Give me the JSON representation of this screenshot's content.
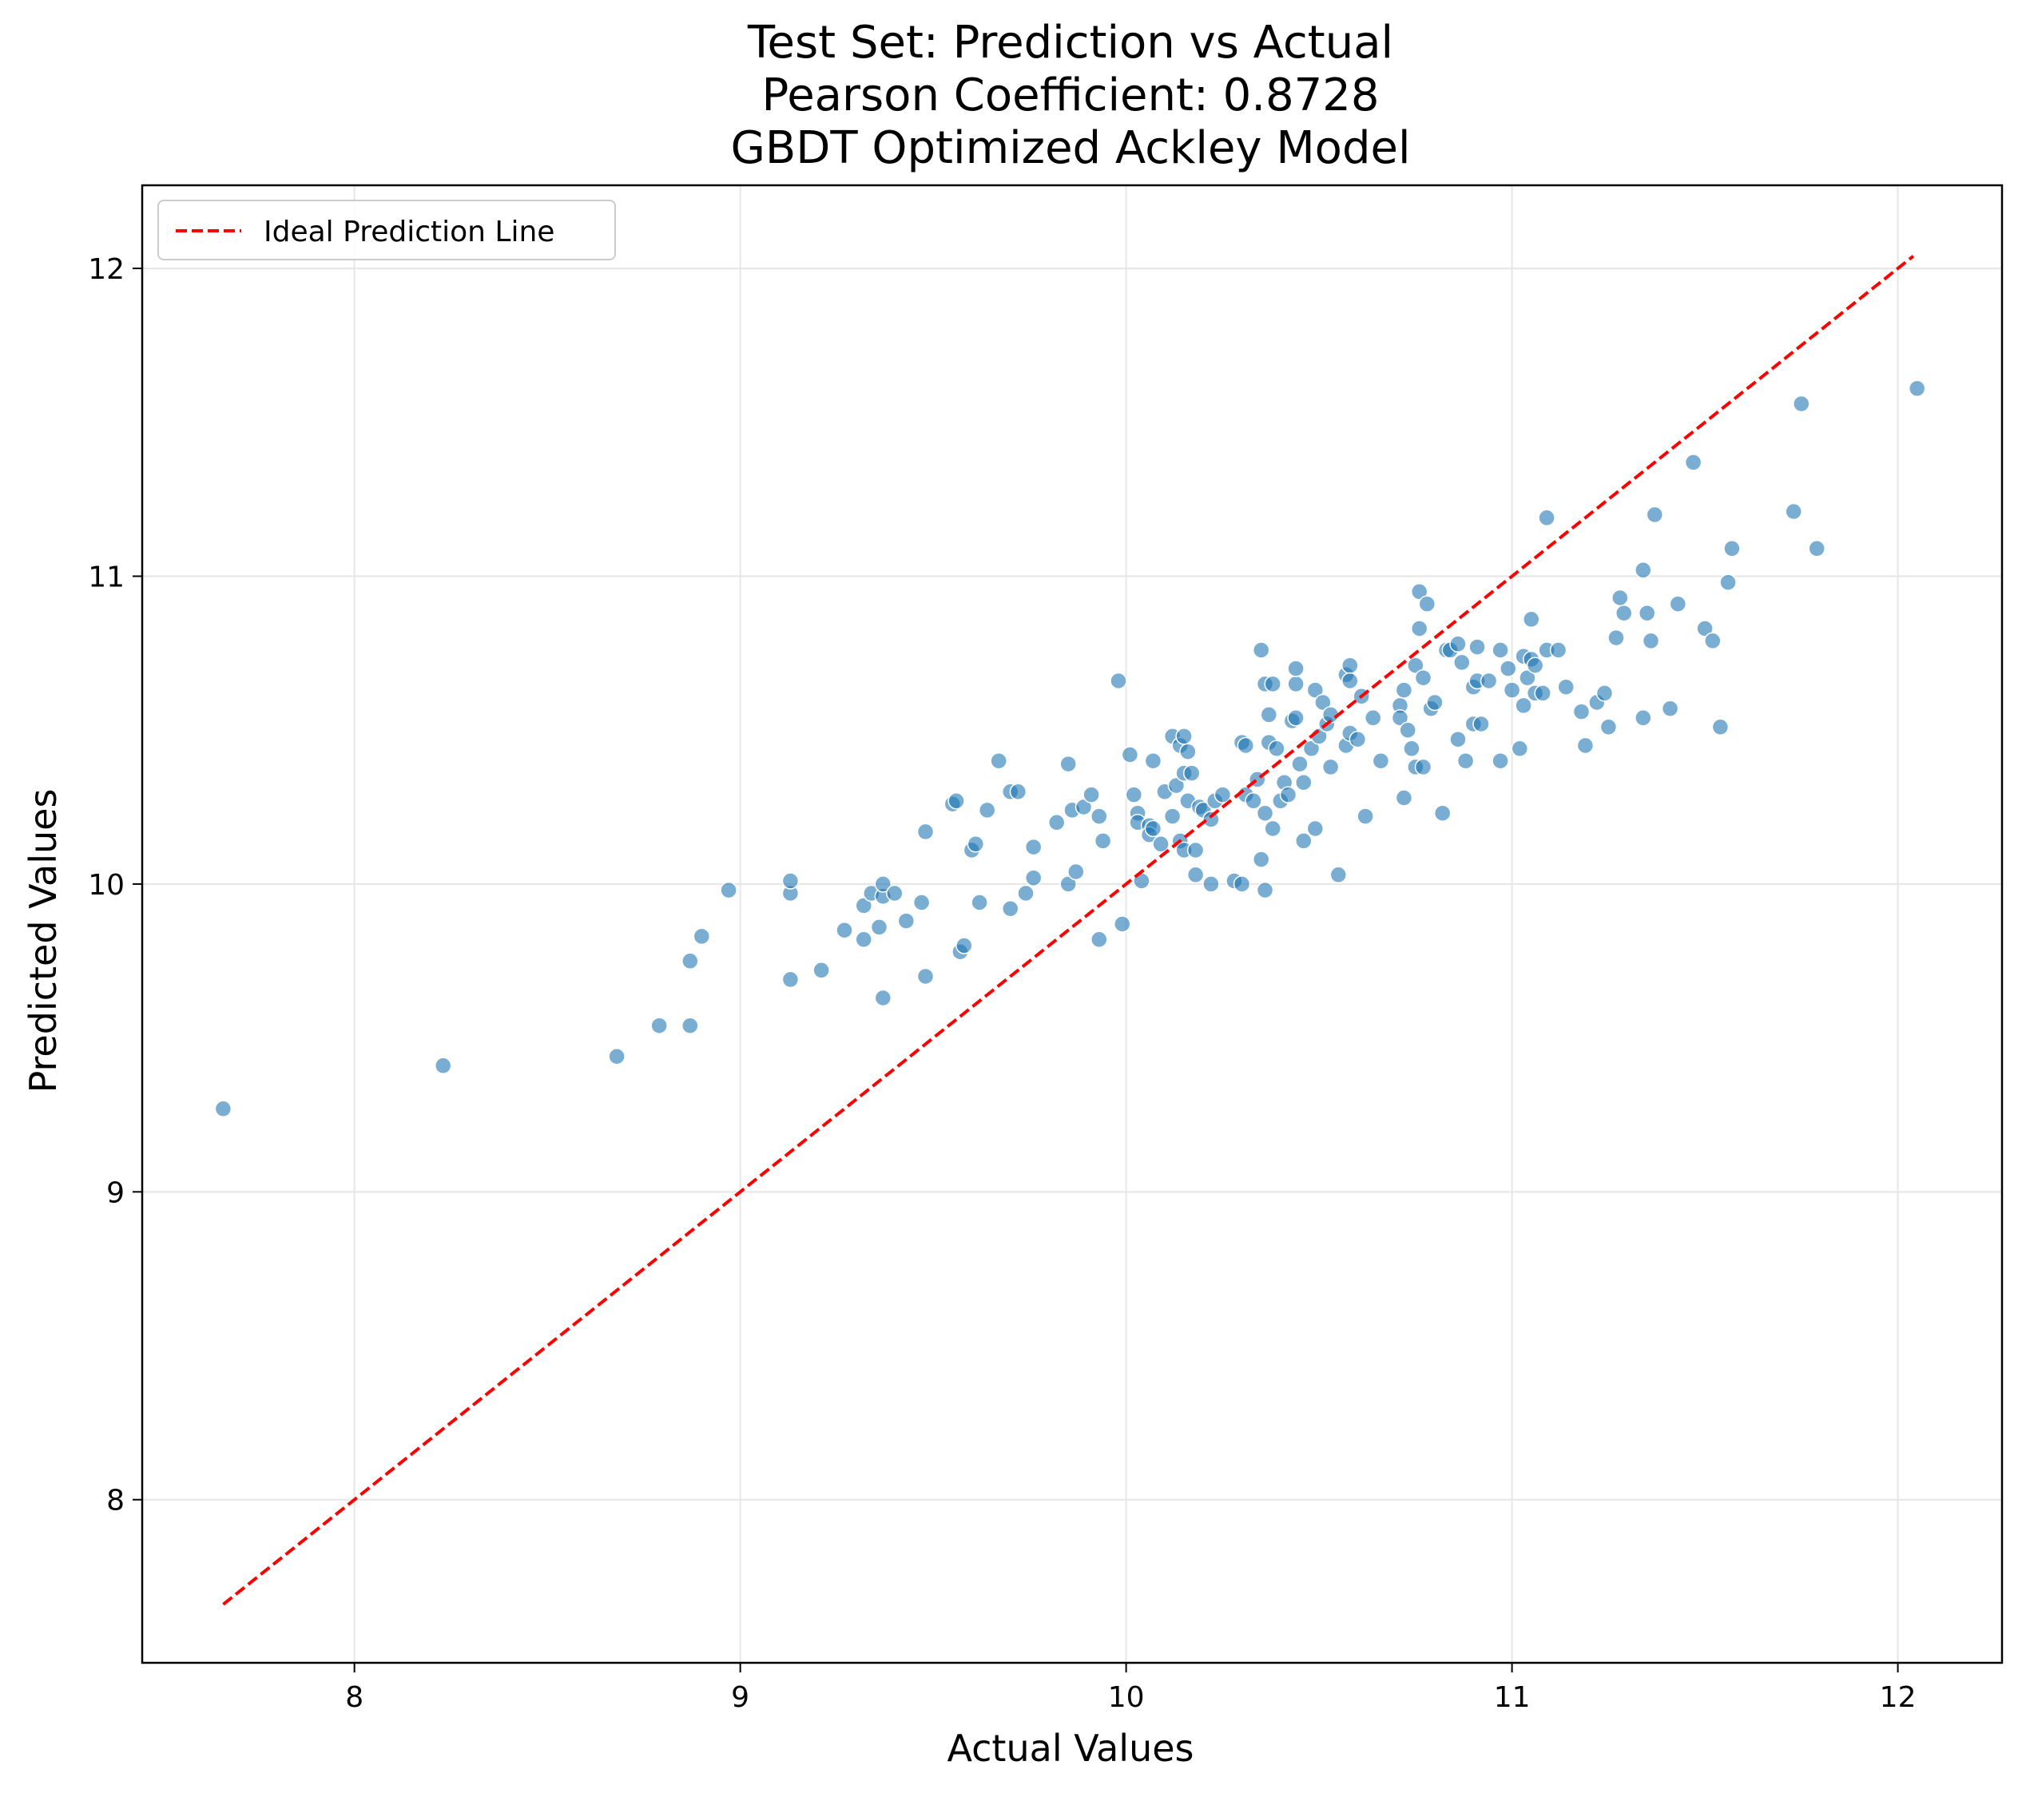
{
  "colors": {
    "point_fill": "#1f77b4",
    "point_edge": "#ffffff",
    "ideal_line": "#ff0000",
    "grid": "#e6e6e6",
    "axes": "#000000"
  },
  "chart_data": {
    "type": "scatter",
    "title_lines": [
      "Test Set: Prediction vs Actual",
      "Pearson Coefficient: 0.8728",
      "GBDT Optimized Ackley Model"
    ],
    "xlabel": "Actual Values",
    "ylabel": "Predicted Values",
    "xlim": [
      7.45,
      12.27
    ],
    "ylim": [
      7.47,
      12.27
    ],
    "xticks": [
      8,
      9,
      10,
      11,
      12
    ],
    "yticks": [
      8,
      9,
      10,
      11,
      12
    ],
    "grid": true,
    "legend": {
      "position": "top-left",
      "entries": [
        "Ideal Prediction Line"
      ]
    },
    "ideal_line": {
      "from": [
        7.66,
        7.66
      ],
      "to": [
        12.04,
        12.04
      ],
      "style": "dashed"
    },
    "series": [
      {
        "marker": "circle",
        "alpha": 0.6,
        "points": [
          [
            7.66,
            9.27
          ],
          [
            8.23,
            9.41
          ],
          [
            8.68,
            9.44
          ],
          [
            8.79,
            9.54
          ],
          [
            8.87,
            9.54
          ],
          [
            8.87,
            9.75
          ],
          [
            8.9,
            9.83
          ],
          [
            8.97,
            9.98
          ],
          [
            9.13,
            9.97
          ],
          [
            9.13,
            10.01
          ],
          [
            9.13,
            9.69
          ],
          [
            9.21,
            9.72
          ],
          [
            9.27,
            9.85
          ],
          [
            9.32,
            9.82
          ],
          [
            9.32,
            9.93
          ],
          [
            9.34,
            9.97
          ],
          [
            9.36,
            9.86
          ],
          [
            9.37,
            9.96
          ],
          [
            9.37,
            10.0
          ],
          [
            9.37,
            9.63
          ],
          [
            9.4,
            9.97
          ],
          [
            9.43,
            9.88
          ],
          [
            9.47,
            9.94
          ],
          [
            9.48,
            9.7
          ],
          [
            9.48,
            10.17
          ],
          [
            9.55,
            10.26
          ],
          [
            9.56,
            10.27
          ],
          [
            9.57,
            9.78
          ],
          [
            9.58,
            9.8
          ],
          [
            9.6,
            10.11
          ],
          [
            9.61,
            10.13
          ],
          [
            9.62,
            9.94
          ],
          [
            9.64,
            10.24
          ],
          [
            9.67,
            10.4
          ],
          [
            9.7,
            9.92
          ],
          [
            9.7,
            10.3
          ],
          [
            9.72,
            10.3
          ],
          [
            9.74,
            9.97
          ],
          [
            9.76,
            10.02
          ],
          [
            9.76,
            10.12
          ],
          [
            9.82,
            10.2
          ],
          [
            9.85,
            10.0
          ],
          [
            9.85,
            10.39
          ],
          [
            9.86,
            10.24
          ],
          [
            9.87,
            10.04
          ],
          [
            9.89,
            10.25
          ],
          [
            9.91,
            10.29
          ],
          [
            9.93,
            10.22
          ],
          [
            9.93,
            9.82
          ],
          [
            9.94,
            10.14
          ],
          [
            9.98,
            10.66
          ],
          [
            9.99,
            9.87
          ],
          [
            10.01,
            10.42
          ],
          [
            10.02,
            10.29
          ],
          [
            10.03,
            10.23
          ],
          [
            10.03,
            10.2
          ],
          [
            10.04,
            10.01
          ],
          [
            10.06,
            10.19
          ],
          [
            10.06,
            10.16
          ],
          [
            10.07,
            10.4
          ],
          [
            10.07,
            10.18
          ],
          [
            10.09,
            10.13
          ],
          [
            10.1,
            10.3
          ],
          [
            10.12,
            10.22
          ],
          [
            10.12,
            10.48
          ],
          [
            10.13,
            10.32
          ],
          [
            10.14,
            10.45
          ],
          [
            10.14,
            10.14
          ],
          [
            10.15,
            10.11
          ],
          [
            10.15,
            10.36
          ],
          [
            10.15,
            10.48
          ],
          [
            10.16,
            10.27
          ],
          [
            10.16,
            10.43
          ],
          [
            10.17,
            10.36
          ],
          [
            10.18,
            10.03
          ],
          [
            10.18,
            10.11
          ],
          [
            10.19,
            10.25
          ],
          [
            10.2,
            10.24
          ],
          [
            10.22,
            10.21
          ],
          [
            10.22,
            10.0
          ],
          [
            10.23,
            10.27
          ],
          [
            10.25,
            10.29
          ],
          [
            10.28,
            10.01
          ],
          [
            10.3,
            10.46
          ],
          [
            10.3,
            10.0
          ],
          [
            10.31,
            10.45
          ],
          [
            10.31,
            10.29
          ],
          [
            10.33,
            10.27
          ],
          [
            10.34,
            10.34
          ],
          [
            10.35,
            10.76
          ],
          [
            10.35,
            10.08
          ],
          [
            10.36,
            10.23
          ],
          [
            10.36,
            10.65
          ],
          [
            10.36,
            9.98
          ],
          [
            10.37,
            10.46
          ],
          [
            10.37,
            10.55
          ],
          [
            10.38,
            10.65
          ],
          [
            10.38,
            10.18
          ],
          [
            10.39,
            10.44
          ],
          [
            10.4,
            10.27
          ],
          [
            10.41,
            10.33
          ],
          [
            10.42,
            10.29
          ],
          [
            10.43,
            10.53
          ],
          [
            10.44,
            10.54
          ],
          [
            10.44,
            10.65
          ],
          [
            10.44,
            10.7
          ],
          [
            10.45,
            10.39
          ],
          [
            10.46,
            10.14
          ],
          [
            10.46,
            10.33
          ],
          [
            10.48,
            10.44
          ],
          [
            10.49,
            10.63
          ],
          [
            10.49,
            10.18
          ],
          [
            10.5,
            10.48
          ],
          [
            10.51,
            10.59
          ],
          [
            10.52,
            10.52
          ],
          [
            10.53,
            10.38
          ],
          [
            10.53,
            10.55
          ],
          [
            10.55,
            10.03
          ],
          [
            10.57,
            10.45
          ],
          [
            10.57,
            10.68
          ],
          [
            10.58,
            10.71
          ],
          [
            10.58,
            10.66
          ],
          [
            10.58,
            10.49
          ],
          [
            10.6,
            10.47
          ],
          [
            10.61,
            10.61
          ],
          [
            10.62,
            10.22
          ],
          [
            10.64,
            10.54
          ],
          [
            10.66,
            10.4
          ],
          [
            10.71,
            10.58
          ],
          [
            10.71,
            10.54
          ],
          [
            10.72,
            10.63
          ],
          [
            10.72,
            10.28
          ],
          [
            10.73,
            10.5
          ],
          [
            10.74,
            10.44
          ],
          [
            10.75,
            10.71
          ],
          [
            10.75,
            10.38
          ],
          [
            10.76,
            10.95
          ],
          [
            10.76,
            10.83
          ],
          [
            10.77,
            10.67
          ],
          [
            10.77,
            10.38
          ],
          [
            10.78,
            10.91
          ],
          [
            10.79,
            10.57
          ],
          [
            10.8,
            10.59
          ],
          [
            10.82,
            10.23
          ],
          [
            10.83,
            10.76
          ],
          [
            10.84,
            10.76
          ],
          [
            10.86,
            10.78
          ],
          [
            10.86,
            10.47
          ],
          [
            10.87,
            10.72
          ],
          [
            10.88,
            10.4
          ],
          [
            10.9,
            10.52
          ],
          [
            10.9,
            10.64
          ],
          [
            10.91,
            10.66
          ],
          [
            10.91,
            10.77
          ],
          [
            10.92,
            10.52
          ],
          [
            10.94,
            10.66
          ],
          [
            10.97,
            10.76
          ],
          [
            10.97,
            10.4
          ],
          [
            10.99,
            10.7
          ],
          [
            11.0,
            10.63
          ],
          [
            11.02,
            10.44
          ],
          [
            11.03,
            10.58
          ],
          [
            11.03,
            10.74
          ],
          [
            11.04,
            10.67
          ],
          [
            11.05,
            10.73
          ],
          [
            11.05,
            10.86
          ],
          [
            11.06,
            10.62
          ],
          [
            11.06,
            10.71
          ],
          [
            11.08,
            10.62
          ],
          [
            11.09,
            10.76
          ],
          [
            11.09,
            11.19
          ],
          [
            11.12,
            10.76
          ],
          [
            11.14,
            10.64
          ],
          [
            11.18,
            10.56
          ],
          [
            11.19,
            10.45
          ],
          [
            11.22,
            10.59
          ],
          [
            11.24,
            10.62
          ],
          [
            11.25,
            10.51
          ],
          [
            11.27,
            10.8
          ],
          [
            11.28,
            10.93
          ],
          [
            11.29,
            10.88
          ],
          [
            11.34,
            10.54
          ],
          [
            11.34,
            11.02
          ],
          [
            11.35,
            10.88
          ],
          [
            11.36,
            10.79
          ],
          [
            11.37,
            11.2
          ],
          [
            11.41,
            10.57
          ],
          [
            11.43,
            10.91
          ],
          [
            11.47,
            11.37
          ],
          [
            11.5,
            10.83
          ],
          [
            11.52,
            10.79
          ],
          [
            11.54,
            10.51
          ],
          [
            11.56,
            10.98
          ],
          [
            11.57,
            11.09
          ],
          [
            11.73,
            11.21
          ],
          [
            11.75,
            11.56
          ],
          [
            11.79,
            11.09
          ],
          [
            12.05,
            11.61
          ]
        ]
      }
    ]
  }
}
